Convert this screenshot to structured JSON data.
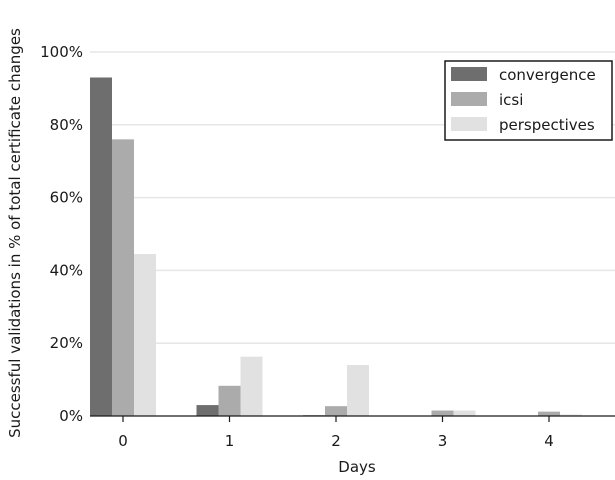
{
  "chart_data": {
    "type": "bar",
    "title": "",
    "xlabel": "Days",
    "ylabel": "Successful validations in % of total certificate changes",
    "categories": [
      "0",
      "1",
      "2",
      "3",
      "4"
    ],
    "ylim": [
      0,
      100
    ],
    "yticks": [
      0,
      20,
      40,
      60,
      80,
      100
    ],
    "ytick_labels": [
      "0%",
      "20%",
      "40%",
      "60%",
      "80%",
      "100%"
    ],
    "grid": true,
    "legend_position": "top-right",
    "series": [
      {
        "name": "convergence",
        "color": "#6e6e6e",
        "values": [
          93,
          3,
          0.2,
          0,
          0
        ]
      },
      {
        "name": "icsi",
        "color": "#ababab",
        "values": [
          76,
          8.3,
          2.7,
          1.5,
          1.2
        ]
      },
      {
        "name": "perspectives",
        "color": "#e1e1e1",
        "values": [
          44.5,
          16.3,
          14,
          1.5,
          0.4
        ]
      }
    ]
  }
}
